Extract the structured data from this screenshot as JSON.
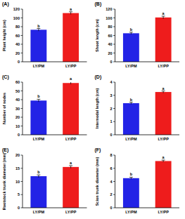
{
  "chart_data": [
    {
      "type": "bar",
      "title": "(A)",
      "y_label": "Plant height (cm)",
      "categories": [
        "LY/PM",
        "LY/PP"
      ],
      "values": [
        73,
        111
      ],
      "errors": [
        3,
        3
      ],
      "colors": [
        "#2323e6",
        "#ee1c1c"
      ],
      "ylim": [
        0,
        120
      ],
      "yticks": [
        0,
        20,
        40,
        60,
        80,
        100,
        120
      ],
      "annotations": [
        "b",
        "a"
      ]
    },
    {
      "type": "bar",
      "title": "(B)",
      "y_label": "Shoot length (cm)",
      "categories": [
        "LY/PM",
        "LY/PP"
      ],
      "values": [
        65,
        101
      ],
      "errors": [
        2.5,
        3
      ],
      "colors": [
        "#2323e6",
        "#ee1c1c"
      ],
      "ylim": [
        0,
        120
      ],
      "yticks": [
        0,
        20,
        40,
        60,
        80,
        100,
        120
      ],
      "annotations": [
        "b",
        "a"
      ]
    },
    {
      "type": "bar",
      "title": "(C)",
      "y_label": "Number of nodes",
      "categories": [
        "LY/PM",
        "LY/PP"
      ],
      "values": [
        39,
        59
      ],
      "errors": [
        1.5,
        1.5
      ],
      "colors": [
        "#2323e6",
        "#ee1c1c"
      ],
      "ylim": [
        0,
        60
      ],
      "yticks": [
        0,
        10,
        20,
        30,
        40,
        50,
        60
      ],
      "annotations": [
        "b",
        "a"
      ]
    },
    {
      "type": "bar",
      "title": "(D)",
      "y_label": "Internodal length (cm)",
      "categories": [
        "LY/PM",
        "LY/PP"
      ],
      "values": [
        2.4,
        3.25
      ],
      "errors": [
        0.08,
        0.08
      ],
      "colors": [
        "#2323e6",
        "#ee1c1c"
      ],
      "ylim": [
        0,
        4
      ],
      "yticks": [
        0,
        1,
        2,
        3,
        4
      ],
      "annotations": [
        "b",
        "a"
      ]
    },
    {
      "type": "bar",
      "title": "(E)",
      "y_label": "Rootstock trunk diameter (mm)",
      "categories": [
        "LY/PM",
        "LY/PP"
      ],
      "values": [
        12,
        15.5
      ],
      "errors": [
        0.5,
        0.5
      ],
      "colors": [
        "#2323e6",
        "#ee1c1c"
      ],
      "ylim": [
        0,
        20
      ],
      "yticks": [
        0,
        5,
        10,
        15,
        20
      ],
      "annotations": [
        "b",
        "a"
      ]
    },
    {
      "type": "bar",
      "title": "(F)",
      "y_label": "Scion trunk diameter (mm)",
      "categories": [
        "LY/PM",
        "LY/PP"
      ],
      "values": [
        4.5,
        7.1
      ],
      "errors": [
        0.15,
        0.15
      ],
      "colors": [
        "#2323e6",
        "#ee1c1c"
      ],
      "ylim": [
        0,
        8
      ],
      "yticks": [
        0,
        2,
        4,
        6,
        8
      ],
      "annotations": [
        "b",
        "a"
      ]
    }
  ]
}
